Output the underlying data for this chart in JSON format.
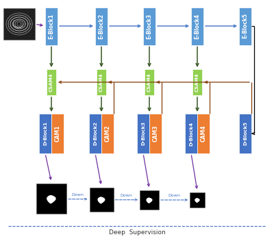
{
  "bg_color": "#ffffff",
  "encoder_blocks": [
    "E-Block1",
    "E-Block2",
    "E-Block3",
    "E-Block4",
    "E-Block5"
  ],
  "csam_labels": [
    "CSAM4",
    "CSAM4",
    "CSAM4",
    "CSAM4"
  ],
  "decoder_blocks": [
    "D-Block1",
    "D-Block2",
    "D-Block3",
    "D-Block4",
    "D-Block5"
  ],
  "cam_blocks": [
    "CAM1",
    "CAM2",
    "CAM3",
    "CAM4"
  ],
  "encoder_color": "#5B9BD5",
  "csam_color": "#92D050",
  "dblock_color": "#4472C4",
  "cam_color": "#ED7D31",
  "arrow_blue": "#4472C4",
  "arrow_green": "#375623",
  "arrow_red": "#843C0C",
  "arrow_purple": "#7030A0",
  "arrow_black": "#000000",
  "deep_sup_color": "#4472C4",
  "title": "Deep  Supervision"
}
